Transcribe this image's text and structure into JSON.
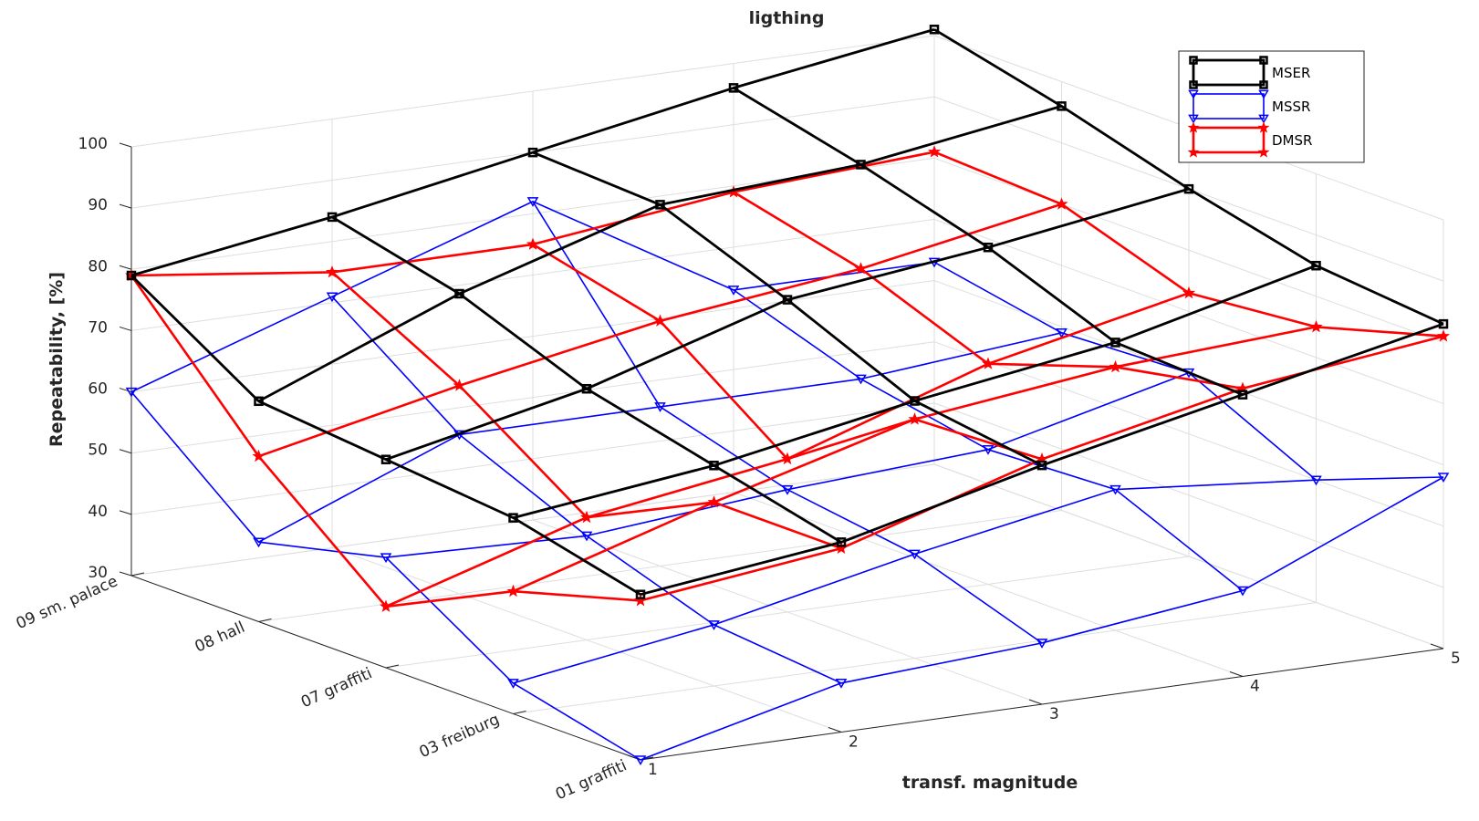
{
  "chart_data": {
    "type": "line3d",
    "title": "ligthing",
    "xlabel": "transf. magnitude",
    "ylabel": "",
    "zlabel": "Repeatability, [%]",
    "x_ticks": [
      "1",
      "2",
      "3",
      "4",
      "5"
    ],
    "y_ticks": [
      "01 graffiti",
      "03 freiburg",
      "07 graffiti",
      "08 hall",
      "09 sm. palace"
    ],
    "z_ticks": [
      "30",
      "40",
      "50",
      "60",
      "70",
      "80",
      "90",
      "100"
    ],
    "zlim": [
      30,
      100
    ],
    "grid": true,
    "legend_position": "top-right",
    "series": [
      {
        "name": "MSER",
        "color": "#000000",
        "marker": "square",
        "values": [
          [
            57,
            61,
            69,
            76,
            83
          ],
          [
            62,
            66,
            72,
            77,
            85
          ],
          [
            64,
            71,
            81,
            85,
            90
          ],
          [
            66,
            79,
            89,
            91,
            96
          ],
          [
            79,
            84,
            90,
            96,
            101
          ]
        ]
      },
      {
        "name": "MSSR",
        "color": "#0000ff",
        "marker": "triangle-down",
        "values": [
          [
            30,
            38,
            40,
            44,
            58
          ],
          [
            35,
            40,
            47,
            53,
            50
          ],
          [
            48,
            47,
            50,
            52,
            60
          ],
          [
            43,
            56,
            56,
            56,
            59
          ],
          [
            60,
            71,
            82,
            63,
            63
          ]
        ]
      },
      {
        "name": "DMSR",
        "color": "#ff0000",
        "marker": "star",
        "values": [
          [
            56,
            60,
            70,
            77,
            81
          ],
          [
            50,
            60,
            69,
            73,
            75
          ],
          [
            40,
            50,
            55,
            66,
            73
          ],
          [
            57,
            64,
            70,
            74,
            80
          ],
          [
            79,
            75,
            75,
            79,
            81
          ]
        ]
      }
    ]
  }
}
